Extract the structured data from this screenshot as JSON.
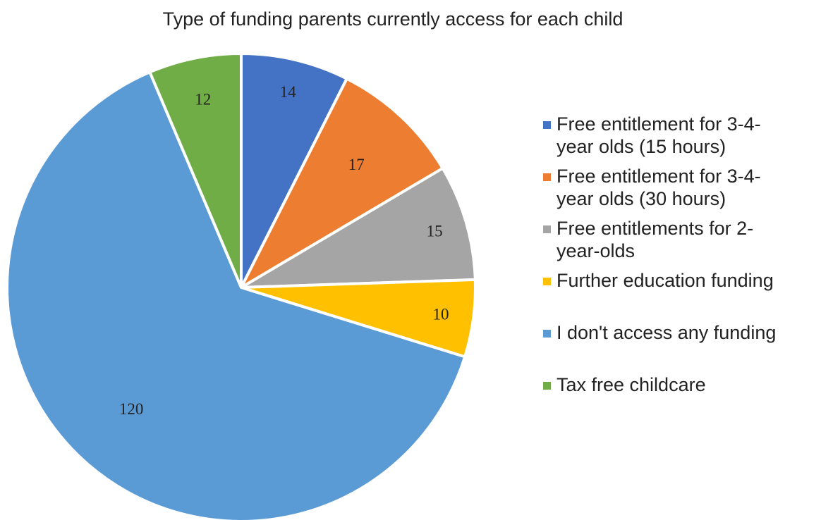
{
  "chart_data": {
    "type": "pie",
    "title": "Type of funding parents currently access for each child",
    "legend_position": "right",
    "slices": [
      {
        "label": "Free entitlement for 3-4-year olds (15 hours)",
        "legend_lines": [
          "Free entitlement for 3-4-",
          "year olds (15 hours)"
        ],
        "value": 14,
        "value_label": "14",
        "color": "#4472C4"
      },
      {
        "label": "Free entitlement for 3-4-year olds (30 hours)",
        "legend_lines": [
          "Free entitlement for 3-4-",
          "year olds (30 hours)"
        ],
        "value": 17,
        "value_label": "17",
        "color": "#ED7D31"
      },
      {
        "label": "Free entitlements for 2-year-olds",
        "legend_lines": [
          "Free entitlements for 2-",
          "year-olds"
        ],
        "value": 15,
        "value_label": "15",
        "color": "#A5A5A5"
      },
      {
        "label": "Further education funding",
        "legend_lines": [
          "Further education funding"
        ],
        "value": 10,
        "value_label": "10",
        "color": "#FFC000"
      },
      {
        "label": "I don't access any funding",
        "legend_lines": [
          "I don't access any funding"
        ],
        "value": 120,
        "value_label": "120",
        "color": "#5B9BD5"
      },
      {
        "label": "Tax free childcare",
        "legend_lines": [
          "Tax free childcare"
        ],
        "value": 12,
        "value_label": "12",
        "color": "#70AD47"
      }
    ]
  }
}
